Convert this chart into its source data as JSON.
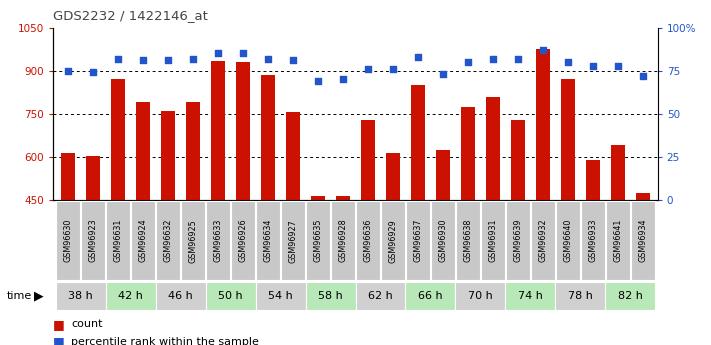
{
  "title": "GDS2232 / 1422146_at",
  "samples": [
    "GSM96630",
    "GSM96923",
    "GSM96631",
    "GSM96924",
    "GSM96632",
    "GSM96925",
    "GSM96633",
    "GSM96926",
    "GSM96634",
    "GSM96927",
    "GSM96635",
    "GSM96928",
    "GSM96636",
    "GSM96929",
    "GSM96637",
    "GSM96930",
    "GSM96638",
    "GSM96931",
    "GSM96639",
    "GSM96932",
    "GSM96640",
    "GSM96933",
    "GSM96641",
    "GSM96934"
  ],
  "counts": [
    615,
    603,
    870,
    790,
    760,
    790,
    935,
    930,
    885,
    755,
    463,
    463,
    730,
    615,
    850,
    625,
    773,
    810,
    730,
    975,
    870,
    590,
    640,
    475
  ],
  "percentile": [
    75,
    74,
    82,
    81,
    81,
    82,
    85,
    85,
    82,
    81,
    69,
    70,
    76,
    76,
    83,
    73,
    80,
    82,
    82,
    87,
    80,
    78,
    78,
    72
  ],
  "time_groups": [
    {
      "label": "38 h",
      "start": 0,
      "end": 2,
      "color": "#d0d0d0"
    },
    {
      "label": "42 h",
      "start": 2,
      "end": 4,
      "color": "#b8e8b8"
    },
    {
      "label": "46 h",
      "start": 4,
      "end": 6,
      "color": "#d0d0d0"
    },
    {
      "label": "50 h",
      "start": 6,
      "end": 8,
      "color": "#b8e8b8"
    },
    {
      "label": "54 h",
      "start": 8,
      "end": 10,
      "color": "#d0d0d0"
    },
    {
      "label": "58 h",
      "start": 10,
      "end": 12,
      "color": "#b8e8b8"
    },
    {
      "label": "62 h",
      "start": 12,
      "end": 14,
      "color": "#d0d0d0"
    },
    {
      "label": "66 h",
      "start": 14,
      "end": 16,
      "color": "#b8e8b8"
    },
    {
      "label": "70 h",
      "start": 16,
      "end": 18,
      "color": "#d0d0d0"
    },
    {
      "label": "74 h",
      "start": 18,
      "end": 20,
      "color": "#b8e8b8"
    },
    {
      "label": "78 h",
      "start": 20,
      "end": 22,
      "color": "#d0d0d0"
    },
    {
      "label": "82 h",
      "start": 22,
      "end": 24,
      "color": "#b8e8b8"
    }
  ],
  "ylim_left": [
    450,
    1050
  ],
  "ylim_right": [
    0,
    100
  ],
  "yticks_left": [
    450,
    600,
    750,
    900,
    1050
  ],
  "yticks_right": [
    0,
    25,
    50,
    75,
    100
  ],
  "bar_color": "#cc1100",
  "dot_color": "#2255cc",
  "bar_bottom": 450,
  "grid_values": [
    600,
    750,
    900
  ],
  "title_color": "#444444",
  "axis_color_left": "#cc1100",
  "axis_color_right": "#2255cc",
  "fig_width": 7.11,
  "fig_height": 3.45,
  "sample_box_color": "#c8c8c8",
  "sample_box_edge": "#ffffff"
}
